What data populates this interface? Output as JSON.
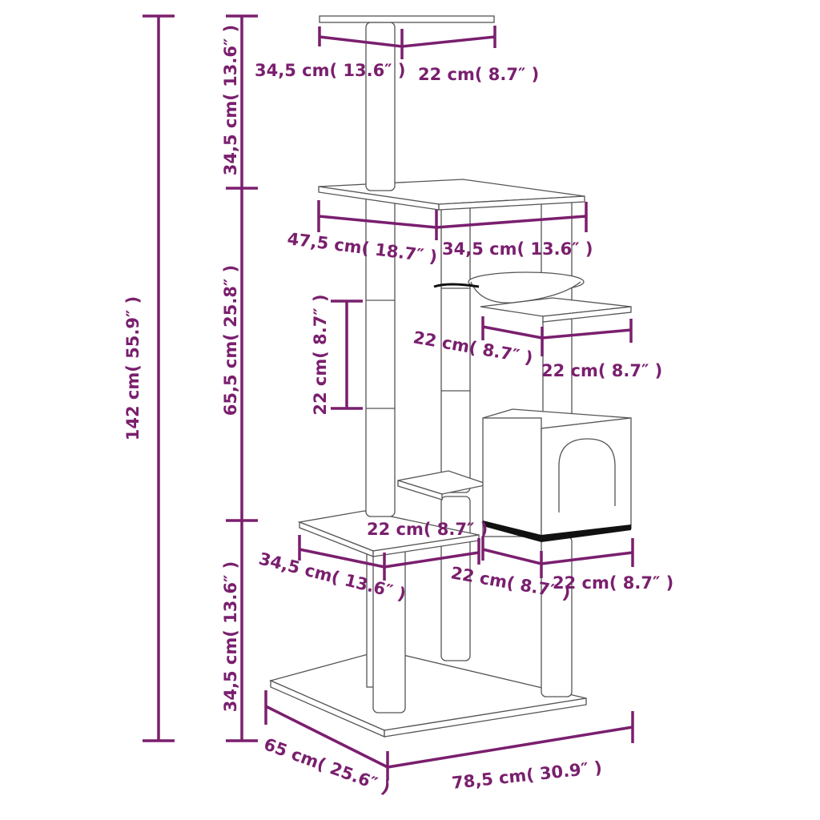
{
  "accent_color": "#7a1f6e",
  "labels": {
    "top_depth": "34,5 cm( 13.6″ )",
    "top_width": "22 cm( 8.7″ )",
    "top_height": "34,5 cm( 13.6″ )",
    "total_height": "142 cm( 55.9″ )",
    "mid_height": "65,5 cm( 25.8″ )",
    "post_segment": "22 cm( 8.7″ )",
    "upper_platform_depth": "47,5 cm( 18.7″ )",
    "upper_platform_width": "34,5 cm( 13.6″ )",
    "small_platform_depth": "22 cm( 8.7″ )",
    "small_platform_width": "22 cm( 8.7″ )",
    "step_platform": "22 cm( 8.7″ )",
    "lower_platform_depth": "34,5 cm( 13.6″ )",
    "condo_depth": "22 cm( 8.7″ )",
    "condo_width": "22 cm( 8.7″ )",
    "bottom_height": "34,5 cm( 13.6″ )",
    "base_depth": "65 cm( 25.6″ )",
    "base_width": "78,5 cm( 30.9″ )"
  }
}
